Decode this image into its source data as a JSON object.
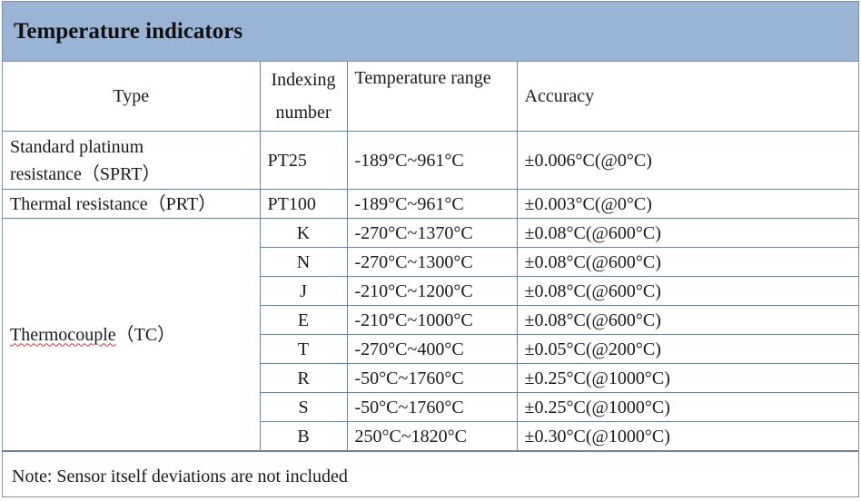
{
  "title": "Temperature indicators",
  "columns": {
    "type": "Type",
    "index_line1": "Indexing",
    "index_line2": "number",
    "range": "Temperature range",
    "accuracy": "Accuracy"
  },
  "rows": [
    {
      "type_line1": "Standard platinum",
      "type_line2": "resistance（SPRT）",
      "index": "PT25",
      "range": "-189°C~961°C",
      "accuracy": "±0.006°C(@0°C)"
    },
    {
      "type": "Thermal resistance（PRT）",
      "index": "PT100",
      "range": "-189°C~961°C",
      "accuracy": "±0.003°C(@0°C)"
    }
  ],
  "thermocouple": {
    "type_word": "Thermocouple",
    "type_suffix": "（TC）",
    "items": [
      {
        "index": "K",
        "range": "-270°C~1370°C",
        "accuracy": "±0.08°C(@600°C)"
      },
      {
        "index": "N",
        "range": "-270°C~1300°C",
        "accuracy": "±0.08°C(@600°C)"
      },
      {
        "index": "J",
        "range": "-210°C~1200°C",
        "accuracy": "±0.08°C(@600°C)"
      },
      {
        "index": "E",
        "range": "-210°C~1000°C",
        "accuracy": "±0.08°C(@600°C)"
      },
      {
        "index": "T",
        "range": "-270°C~400°C",
        "accuracy": "±0.05°C(@200°C)"
      },
      {
        "index": "R",
        "range": "-50°C~1760°C",
        "accuracy": "±0.25°C(@1000°C)"
      },
      {
        "index": "S",
        "range": "-50°C~1760°C",
        "accuracy": "±0.25°C(@1000°C)"
      },
      {
        "index": "B",
        "range": "250°C~1820°C",
        "accuracy": "±0.30°C(@1000°C)"
      }
    ]
  },
  "note": "Note: Sensor itself deviations are not included",
  "colors": {
    "header_bg": "#9ab4d6",
    "border": "#6f7f96"
  }
}
